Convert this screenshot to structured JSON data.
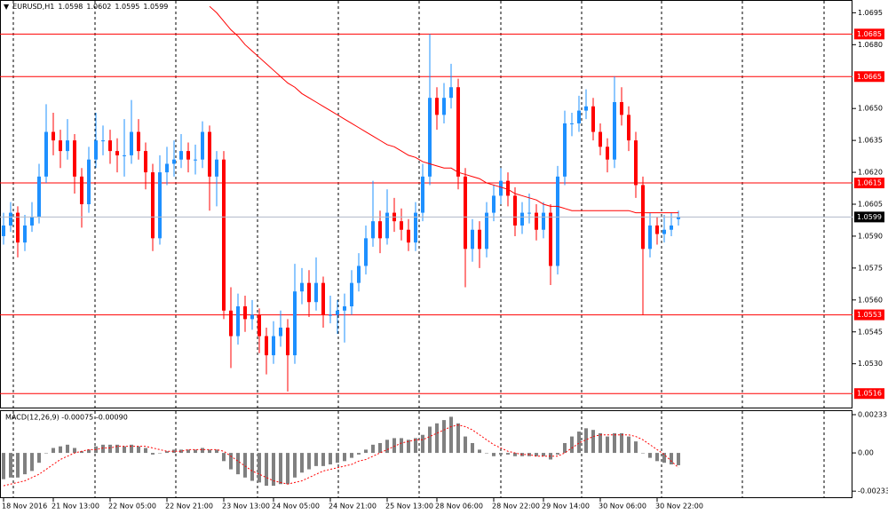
{
  "chart_data": [
    {
      "type": "candlestick",
      "title": "EURUSD,H1",
      "categories": [
        "18 Nov 2016",
        null,
        null,
        null,
        null,
        null,
        null,
        "21 Nov 13:00",
        null,
        null,
        null,
        null,
        null,
        null,
        null,
        "22 Nov 05:00",
        null,
        null,
        null,
        null,
        null,
        null,
        null,
        "22 Nov 21:00",
        null,
        null,
        null,
        null,
        null,
        null,
        null,
        "23 Nov 13:00",
        null,
        null,
        null,
        null,
        null,
        null,
        "24 Nov 05:00",
        null,
        null,
        null,
        null,
        null,
        null,
        null,
        "24 Nov 21:00",
        null,
        null,
        null,
        null,
        null,
        null,
        null,
        "25 Nov 13:00",
        null,
        null,
        null,
        null,
        null,
        null,
        "28 Nov 06:00",
        null,
        null,
        null,
        null,
        null,
        null,
        null,
        "28 Nov 22:00",
        null,
        null,
        null,
        null,
        null,
        null,
        "29 Nov 14:00",
        null,
        null,
        null,
        null,
        null,
        null,
        null,
        "30 Nov 06:00",
        null,
        null,
        null,
        null,
        null,
        null,
        null,
        "30 Nov 22:00",
        null,
        null,
        null
      ],
      "ohlc": [
        [
          1.059,
          1.0601,
          1.0586,
          1.0595
        ],
        [
          1.0595,
          1.0606,
          1.0592,
          1.0601
        ],
        [
          1.0601,
          1.0604,
          1.058,
          1.0587
        ],
        [
          1.0587,
          1.06,
          1.0583,
          1.0595
        ],
        [
          1.0595,
          1.0606,
          1.0592,
          1.0599
        ],
        [
          1.0599,
          1.0624,
          1.0596,
          1.0618
        ],
        [
          1.0618,
          1.0652,
          1.0615,
          1.0639
        ],
        [
          1.0639,
          1.0648,
          1.0628,
          1.0635
        ],
        [
          1.0635,
          1.064,
          1.0622,
          1.063
        ],
        [
          1.063,
          1.0645,
          1.0626,
          1.0635
        ],
        [
          1.0635,
          1.0638,
          1.061,
          1.0618
        ],
        [
          1.0618,
          1.0622,
          1.0594,
          1.0605
        ],
        [
          1.0605,
          1.0632,
          1.0601,
          1.0626
        ],
        [
          1.0626,
          1.0648,
          1.0622,
          1.0635
        ],
        [
          1.0635,
          1.0642,
          1.0628,
          1.0635
        ],
        [
          1.0635,
          1.064,
          1.0624,
          1.063
        ],
        [
          1.063,
          1.0636,
          1.062,
          1.0628
        ],
        [
          1.0628,
          1.0645,
          1.0618,
          1.0628
        ],
        [
          1.0628,
          1.0654,
          1.0624,
          1.0639
        ],
        [
          1.0639,
          1.0645,
          1.0626,
          1.063
        ],
        [
          1.063,
          1.0634,
          1.0612,
          1.062
        ],
        [
          1.062,
          1.0624,
          1.0583,
          1.0589
        ],
        [
          1.0589,
          1.0628,
          1.0586,
          1.062
        ],
        [
          1.062,
          1.0632,
          1.0614,
          1.0624
        ],
        [
          1.0624,
          1.0635,
          1.0618,
          1.0626
        ],
        [
          1.0626,
          1.0638,
          1.0622,
          1.063
        ],
        [
          1.063,
          1.0634,
          1.062,
          1.0626
        ],
        [
          1.0626,
          1.0633,
          1.0619,
          1.0626
        ],
        [
          1.0626,
          1.0644,
          1.0622,
          1.0639
        ],
        [
          1.0639,
          1.0642,
          1.0602,
          1.0618
        ],
        [
          1.0618,
          1.063,
          1.0604,
          1.0626
        ],
        [
          1.0626,
          1.063,
          1.0551,
          1.0555
        ],
        [
          1.0555,
          1.0566,
          1.0528,
          1.0543
        ],
        [
          1.0543,
          1.0563,
          1.0539,
          1.0557
        ],
        [
          1.0557,
          1.0562,
          1.0545,
          1.0551
        ],
        [
          1.0551,
          1.056,
          1.0546,
          1.0553
        ],
        [
          1.0553,
          1.0556,
          1.0535,
          1.0543
        ],
        [
          1.0543,
          1.0547,
          1.0525,
          1.0534
        ],
        [
          1.0534,
          1.055,
          1.053,
          1.0543
        ],
        [
          1.0543,
          1.0555,
          1.0538,
          1.0547
        ],
        [
          1.0547,
          1.0551,
          1.0517,
          1.0534
        ],
        [
          1.0534,
          1.0577,
          1.053,
          1.0564
        ],
        [
          1.0564,
          1.0575,
          1.0558,
          1.0568
        ],
        [
          1.0568,
          1.0574,
          1.0552,
          1.0559
        ],
        [
          1.0559,
          1.058,
          1.0555,
          1.0568
        ],
        [
          1.0568,
          1.0571,
          1.0547,
          1.0553
        ],
        [
          1.0553,
          1.0562,
          1.0549,
          1.0553
        ],
        [
          1.0553,
          1.056,
          1.0544,
          1.0555
        ],
        [
          1.0555,
          1.0563,
          1.054,
          1.0557
        ],
        [
          1.0557,
          1.0574,
          1.0553,
          1.0568
        ],
        [
          1.0568,
          1.0582,
          1.0564,
          1.0576
        ],
        [
          1.0576,
          1.0595,
          1.0572,
          1.0589
        ],
        [
          1.0589,
          1.0616,
          1.0585,
          1.0597
        ],
        [
          1.0597,
          1.0602,
          1.0582,
          1.0589
        ],
        [
          1.0589,
          1.0612,
          1.0586,
          1.0601
        ],
        [
          1.0601,
          1.0608,
          1.0592,
          1.0597
        ],
        [
          1.0597,
          1.0603,
          1.0588,
          1.0593
        ],
        [
          1.0593,
          1.0598,
          1.0583,
          1.0587
        ],
        [
          1.0587,
          1.0606,
          1.0583,
          1.0601
        ],
        [
          1.0601,
          1.0624,
          1.0597,
          1.0618
        ],
        [
          1.0618,
          1.0685,
          1.0614,
          1.0655
        ],
        [
          1.0655,
          1.066,
          1.064,
          1.0647
        ],
        [
          1.0647,
          1.0662,
          1.0643,
          1.0655
        ],
        [
          1.0655,
          1.0671,
          1.065,
          1.066
        ],
        [
          1.066,
          1.0664,
          1.0612,
          1.0618
        ],
        [
          1.0618,
          1.0622,
          1.0566,
          1.0584
        ],
        [
          1.0584,
          1.0598,
          1.0578,
          1.0593
        ],
        [
          1.0593,
          1.0597,
          1.0575,
          1.0584
        ],
        [
          1.0584,
          1.0606,
          1.058,
          1.0601
        ],
        [
          1.0601,
          1.0614,
          1.0597,
          1.0609
        ],
        [
          1.0609,
          1.0622,
          1.0605,
          1.0616
        ],
        [
          1.0616,
          1.062,
          1.0604,
          1.0609
        ],
        [
          1.0609,
          1.0613,
          1.059,
          1.0595
        ],
        [
          1.0595,
          1.0606,
          1.0591,
          1.0601
        ],
        [
          1.0601,
          1.061,
          1.0596,
          1.0601
        ],
        [
          1.0601,
          1.0605,
          1.0588,
          1.0593
        ],
        [
          1.0593,
          1.0606,
          1.0589,
          1.0601
        ],
        [
          1.0601,
          1.0605,
          1.0567,
          1.0576
        ],
        [
          1.0576,
          1.0623,
          1.0572,
          1.0618
        ],
        [
          1.0618,
          1.0649,
          1.0614,
          1.0643
        ],
        [
          1.0643,
          1.0648,
          1.0637,
          1.0643
        ],
        [
          1.0643,
          1.0656,
          1.0639,
          1.0649
        ],
        [
          1.0649,
          1.0659,
          1.0645,
          1.0651
        ],
        [
          1.0651,
          1.0655,
          1.0635,
          1.0639
        ],
        [
          1.0639,
          1.0643,
          1.0628,
          1.0632
        ],
        [
          1.0632,
          1.0636,
          1.062,
          1.0626
        ],
        [
          1.0626,
          1.0665,
          1.0622,
          1.0653
        ],
        [
          1.0653,
          1.066,
          1.0642,
          1.0647
        ],
        [
          1.0647,
          1.0651,
          1.063,
          1.0635
        ],
        [
          1.0635,
          1.0639,
          1.0608,
          1.0614
        ],
        [
          1.0614,
          1.0618,
          1.0553,
          1.0584
        ],
        [
          1.0584,
          1.0601,
          1.058,
          1.0595
        ],
        [
          1.0595,
          1.0599,
          1.0586,
          1.0591
        ],
        [
          1.0591,
          1.06,
          1.0587,
          1.0593
        ],
        [
          1.0593,
          1.0601,
          1.059,
          1.0595
        ],
        [
          1.0598,
          1.0602,
          1.0595,
          1.0599
        ]
      ],
      "up_color": "#1e90ff",
      "down_color": "#ff0000",
      "series": [
        {
          "color": "#ff0000",
          "values": [
            null,
            null,
            null,
            null,
            null,
            null,
            null,
            null,
            null,
            null,
            null,
            null,
            null,
            null,
            null,
            null,
            null,
            null,
            null,
            null,
            null,
            null,
            null,
            null,
            null,
            null,
            null,
            null,
            null,
            1.0698,
            1.0695,
            1.0691,
            1.0687,
            1.0684,
            1.068,
            1.0677,
            1.0674,
            1.0671,
            1.0668,
            1.0665,
            1.0662,
            1.066,
            1.0657,
            1.0655,
            1.0653,
            1.0651,
            1.0649,
            1.0647,
            1.0645,
            1.0643,
            1.0641,
            1.0639,
            1.0637,
            1.0635,
            1.0633,
            1.0632,
            1.063,
            1.0628,
            1.0627,
            1.0625,
            1.0624,
            1.0623,
            1.0622,
            1.0622,
            1.062,
            1.0619,
            1.0618,
            1.0617,
            1.0615,
            1.0614,
            1.0613,
            1.0612,
            1.061,
            1.0609,
            1.0608,
            1.0607,
            1.0605,
            1.0604,
            1.0604,
            1.0603,
            1.0602,
            1.0602,
            1.0602,
            1.0602,
            1.0602,
            1.0602,
            1.0602,
            1.0602,
            1.0602,
            1.0601,
            1.0601,
            1.0601,
            1.0601,
            1.0601,
            1.0601,
            1.0601
          ]
        }
      ],
      "levels": [
        1.0685,
        1.0665,
        1.0615,
        1.0553,
        1.0516
      ],
      "level_color": "#ff0000",
      "ylim": [
        1.0509,
        1.0701
      ],
      "yticks": [
        1.0695,
        {
          "value": 1.068,
          "label": "1.0680"
        },
        {
          "value": 1.065,
          "label": "1.0650"
        },
        1.0635,
        {
          "value": 1.062,
          "label": "1.0620"
        },
        1.0605,
        {
          "value": 1.059,
          "label": "1.0590"
        },
        1.0575,
        {
          "value": 1.056,
          "label": "1.0560"
        },
        1.0545,
        {
          "value": 1.053,
          "label": "1.0530"
        }
      ]
    },
    {
      "type": "macd",
      "title": "MACD(12,26,9) -0.00075 -0.00090",
      "values": [
        -0.0016,
        -0.0015,
        -0.0015,
        -0.0013,
        -0.0011,
        -0.0006,
        0.0,
        0.0003,
        0.0004,
        0.0005,
        0.0003,
        0.0001,
        0.0002,
        0.0004,
        0.0005,
        0.0005,
        0.0005,
        0.0004,
        0.0005,
        0.0004,
        0.0003,
        -0.0001,
        0.0,
        0.0001,
        0.0002,
        0.0002,
        0.0002,
        0.0002,
        0.0003,
        0.0002,
        0.0002,
        -0.0005,
        -0.001,
        -0.0013,
        -0.0015,
        -0.0017,
        -0.0018,
        -0.002,
        -0.002,
        -0.0019,
        -0.0019,
        -0.0015,
        -0.0012,
        -0.001,
        -0.0008,
        -0.0008,
        -0.0007,
        -0.0006,
        -0.0005,
        -0.0003,
        -0.0001,
        0.0002,
        0.0005,
        0.0006,
        0.0008,
        0.0009,
        0.0009,
        0.0008,
        0.0009,
        0.0011,
        0.0016,
        0.0018,
        0.002,
        0.0022,
        0.0018,
        0.001,
        0.0006,
        0.0002,
        0.0,
        -0.0002,
        -0.0001,
        -0.0001,
        -0.0002,
        -0.0002,
        -0.0002,
        -0.0002,
        -0.0002,
        -0.0004,
        -0.0001,
        0.0006,
        0.001,
        0.0013,
        0.0015,
        0.0014,
        0.0012,
        0.001,
        0.0012,
        0.0012,
        0.001,
        0.0007,
        0.0,
        -0.0003,
        -0.0005,
        -0.0006,
        -0.0007,
        -0.00075
      ],
      "color": "#808080",
      "signal": [
        -0.002,
        -0.0019,
        -0.0018,
        -0.0017,
        -0.0015,
        -0.0013,
        -0.001,
        -0.0007,
        -0.0004,
        -0.0002,
        0.0,
        0.0001,
        0.0002,
        0.0002,
        0.0003,
        0.0003,
        0.0004,
        0.0004,
        0.0004,
        0.0004,
        0.0004,
        0.0003,
        0.0002,
        0.0001,
        0.0001,
        0.0001,
        0.0002,
        0.0002,
        0.0002,
        0.0002,
        0.0002,
        0.0001,
        -0.0002,
        -0.0005,
        -0.0008,
        -0.0011,
        -0.0013,
        -0.0015,
        -0.0017,
        -0.0018,
        -0.0019,
        -0.0018,
        -0.0017,
        -0.0015,
        -0.0013,
        -0.0011,
        -0.001,
        -0.0009,
        -0.0008,
        -0.0007,
        -0.0005,
        -0.0004,
        -0.0002,
        0.0,
        0.0002,
        0.0004,
        0.0006,
        0.0007,
        0.0008,
        0.0008,
        0.001,
        0.0012,
        0.0014,
        0.0016,
        0.0017,
        0.0016,
        0.0014,
        0.0011,
        0.0008,
        0.0005,
        0.0003,
        0.0001,
        0.0,
        -0.0001,
        -0.0001,
        -0.0002,
        -0.0002,
        -0.0002,
        -0.0002,
        0.0,
        0.0003,
        0.0006,
        0.0008,
        0.001,
        0.0011,
        0.0011,
        0.0011,
        0.0011,
        0.0011,
        0.001,
        0.0008,
        0.0005,
        0.0002,
        -0.0001,
        -0.0005,
        -0.0009
      ],
      "signal_color": "#ff0000",
      "ylim": [
        -0.0027,
        0.0026
      ],
      "yticks": [
        0.00233,
        {
          "value": 0,
          "label": "0.00"
        },
        -0.00233
      ]
    }
  ]
}
